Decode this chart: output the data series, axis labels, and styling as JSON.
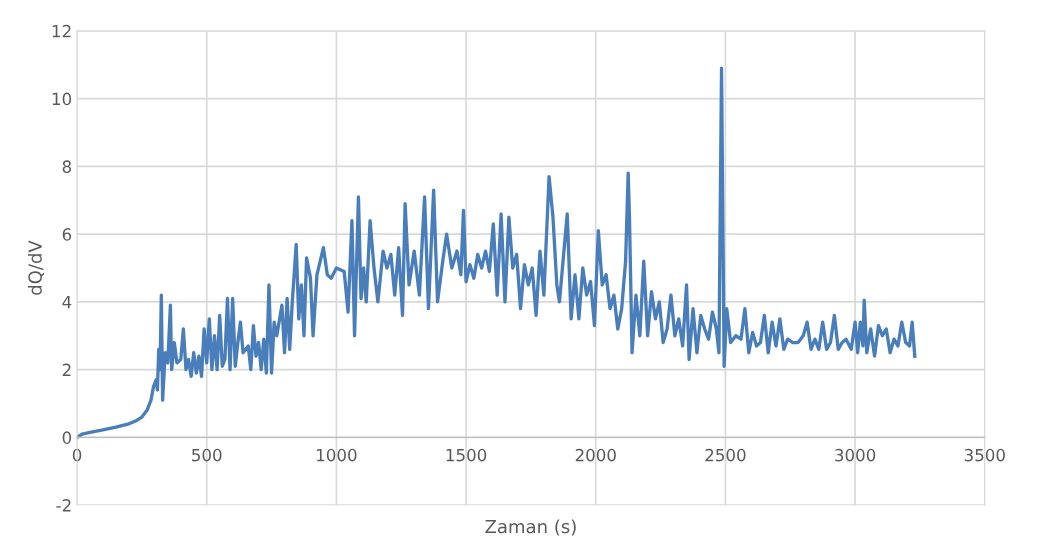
{
  "chart_data": {
    "type": "line",
    "xlabel": "Zaman (s)",
    "ylabel": "dQ/dV",
    "xlim": [
      0,
      3500
    ],
    "xticks": [
      0,
      500,
      1000,
      1500,
      2000,
      2500,
      3000,
      3500
    ],
    "ylim": [
      -2,
      12
    ],
    "yticks": [
      -2,
      0,
      2,
      4,
      6,
      8,
      10,
      12
    ],
    "grid": true,
    "marker": "none",
    "line_style": "solid",
    "series": [
      {
        "color": "#4a7ebb",
        "x": [
          0,
          20,
          50,
          100,
          150,
          200,
          230,
          250,
          270,
          285,
          295,
          305,
          310,
          315,
          320,
          325,
          330,
          340,
          350,
          360,
          365,
          375,
          385,
          400,
          410,
          420,
          430,
          440,
          450,
          460,
          470,
          480,
          490,
          500,
          510,
          520,
          530,
          540,
          550,
          560,
          570,
          580,
          590,
          600,
          610,
          620,
          630,
          640,
          660,
          670,
          680,
          690,
          700,
          710,
          720,
          730,
          740,
          750,
          760,
          770,
          790,
          800,
          810,
          820,
          830,
          845,
          855,
          865,
          875,
          885,
          900,
          910,
          925,
          950,
          965,
          980,
          1000,
          1030,
          1045,
          1060,
          1070,
          1085,
          1095,
          1105,
          1115,
          1130,
          1145,
          1160,
          1180,
          1195,
          1210,
          1225,
          1240,
          1255,
          1265,
          1280,
          1300,
          1320,
          1340,
          1355,
          1375,
          1390,
          1410,
          1425,
          1445,
          1465,
          1480,
          1490,
          1500,
          1515,
          1530,
          1545,
          1560,
          1575,
          1590,
          1605,
          1620,
          1635,
          1650,
          1665,
          1680,
          1695,
          1710,
          1725,
          1740,
          1755,
          1770,
          1785,
          1800,
          1820,
          1835,
          1850,
          1860,
          1875,
          1890,
          1905,
          1920,
          1935,
          1950,
          1965,
          1980,
          1995,
          2010,
          2025,
          2040,
          2055,
          2070,
          2085,
          2100,
          2115,
          2125,
          2130,
          2140,
          2155,
          2170,
          2185,
          2200,
          2215,
          2230,
          2245,
          2260,
          2275,
          2290,
          2305,
          2320,
          2335,
          2350,
          2360,
          2375,
          2390,
          2405,
          2420,
          2435,
          2450,
          2465,
          2475,
          2485,
          2495,
          2505,
          2520,
          2540,
          2560,
          2575,
          2590,
          2605,
          2620,
          2635,
          2650,
          2665,
          2680,
          2695,
          2710,
          2725,
          2740,
          2760,
          2780,
          2800,
          2815,
          2830,
          2845,
          2860,
          2875,
          2890,
          2905,
          2920,
          2935,
          2950,
          2965,
          2985,
          3000,
          3010,
          3020,
          3030,
          3035,
          3045,
          3060,
          3075,
          3090,
          3105,
          3120,
          3135,
          3150,
          3165,
          3180,
          3195,
          3210,
          3220,
          3230
        ],
        "values": [
          0,
          0.1,
          0.15,
          0.22,
          0.3,
          0.4,
          0.5,
          0.6,
          0.8,
          1.1,
          1.5,
          1.7,
          1.4,
          2.6,
          2.0,
          4.2,
          1.1,
          2.5,
          2.2,
          3.9,
          2.0,
          2.8,
          2.2,
          2.3,
          3.2,
          2.0,
          2.3,
          1.8,
          2.5,
          1.9,
          2.4,
          1.8,
          3.2,
          2.2,
          3.5,
          2.0,
          3.0,
          2.0,
          3.6,
          2.1,
          2.3,
          4.1,
          2.0,
          4.1,
          2.1,
          2.8,
          3.4,
          2.5,
          2.7,
          2.0,
          3.3,
          2.4,
          2.8,
          2.0,
          2.9,
          1.9,
          4.5,
          1.9,
          3.4,
          3.0,
          3.9,
          2.5,
          4.1,
          2.6,
          4.0,
          5.7,
          3.5,
          4.5,
          3.0,
          5.3,
          4.7,
          3.0,
          4.8,
          5.6,
          4.8,
          4.7,
          5.0,
          4.9,
          3.7,
          6.4,
          3.0,
          7.1,
          4.1,
          5.0,
          4.0,
          6.4,
          5.0,
          4.0,
          5.5,
          5.0,
          5.4,
          4.2,
          5.6,
          3.6,
          6.9,
          4.5,
          5.5,
          4.2,
          7.1,
          3.8,
          7.3,
          4.0,
          5.2,
          6.0,
          5.0,
          5.5,
          4.8,
          6.7,
          4.6,
          5.1,
          4.7,
          5.4,
          5.0,
          5.5,
          4.9,
          6.3,
          4.2,
          6.6,
          4.0,
          6.5,
          5.0,
          5.4,
          3.8,
          5.1,
          4.5,
          5.0,
          3.6,
          5.5,
          4.2,
          7.7,
          6.5,
          4.5,
          4.0,
          5.3,
          6.6,
          3.5,
          4.8,
          3.5,
          5.0,
          4.2,
          4.6,
          3.3,
          6.1,
          4.5,
          4.8,
          3.8,
          4.2,
          3.2,
          3.8,
          5.2,
          7.8,
          6.5,
          2.5,
          4.2,
          3.0,
          5.2,
          3.0,
          4.3,
          3.5,
          4.0,
          2.8,
          3.2,
          4.2,
          3.0,
          3.5,
          2.7,
          4.5,
          2.3,
          3.8,
          2.5,
          3.6,
          3.2,
          2.9,
          3.7,
          3.2,
          2.5,
          10.9,
          2.1,
          3.8,
          2.8,
          3.0,
          2.9,
          3.8,
          2.5,
          3.1,
          2.7,
          2.8,
          3.6,
          2.5,
          3.4,
          2.7,
          3.5,
          2.6,
          2.9,
          2.8,
          2.8,
          3.0,
          3.4,
          2.6,
          2.9,
          2.6,
          3.4,
          2.6,
          2.8,
          3.6,
          2.6,
          2.8,
          2.9,
          2.6,
          3.4,
          2.5,
          3.4,
          2.7,
          4.05,
          2.5,
          3.2,
          2.4,
          3.3,
          3.0,
          3.2,
          2.5,
          2.9,
          2.7,
          3.4,
          2.8,
          2.7,
          3.4,
          2.4
        ]
      }
    ]
  }
}
